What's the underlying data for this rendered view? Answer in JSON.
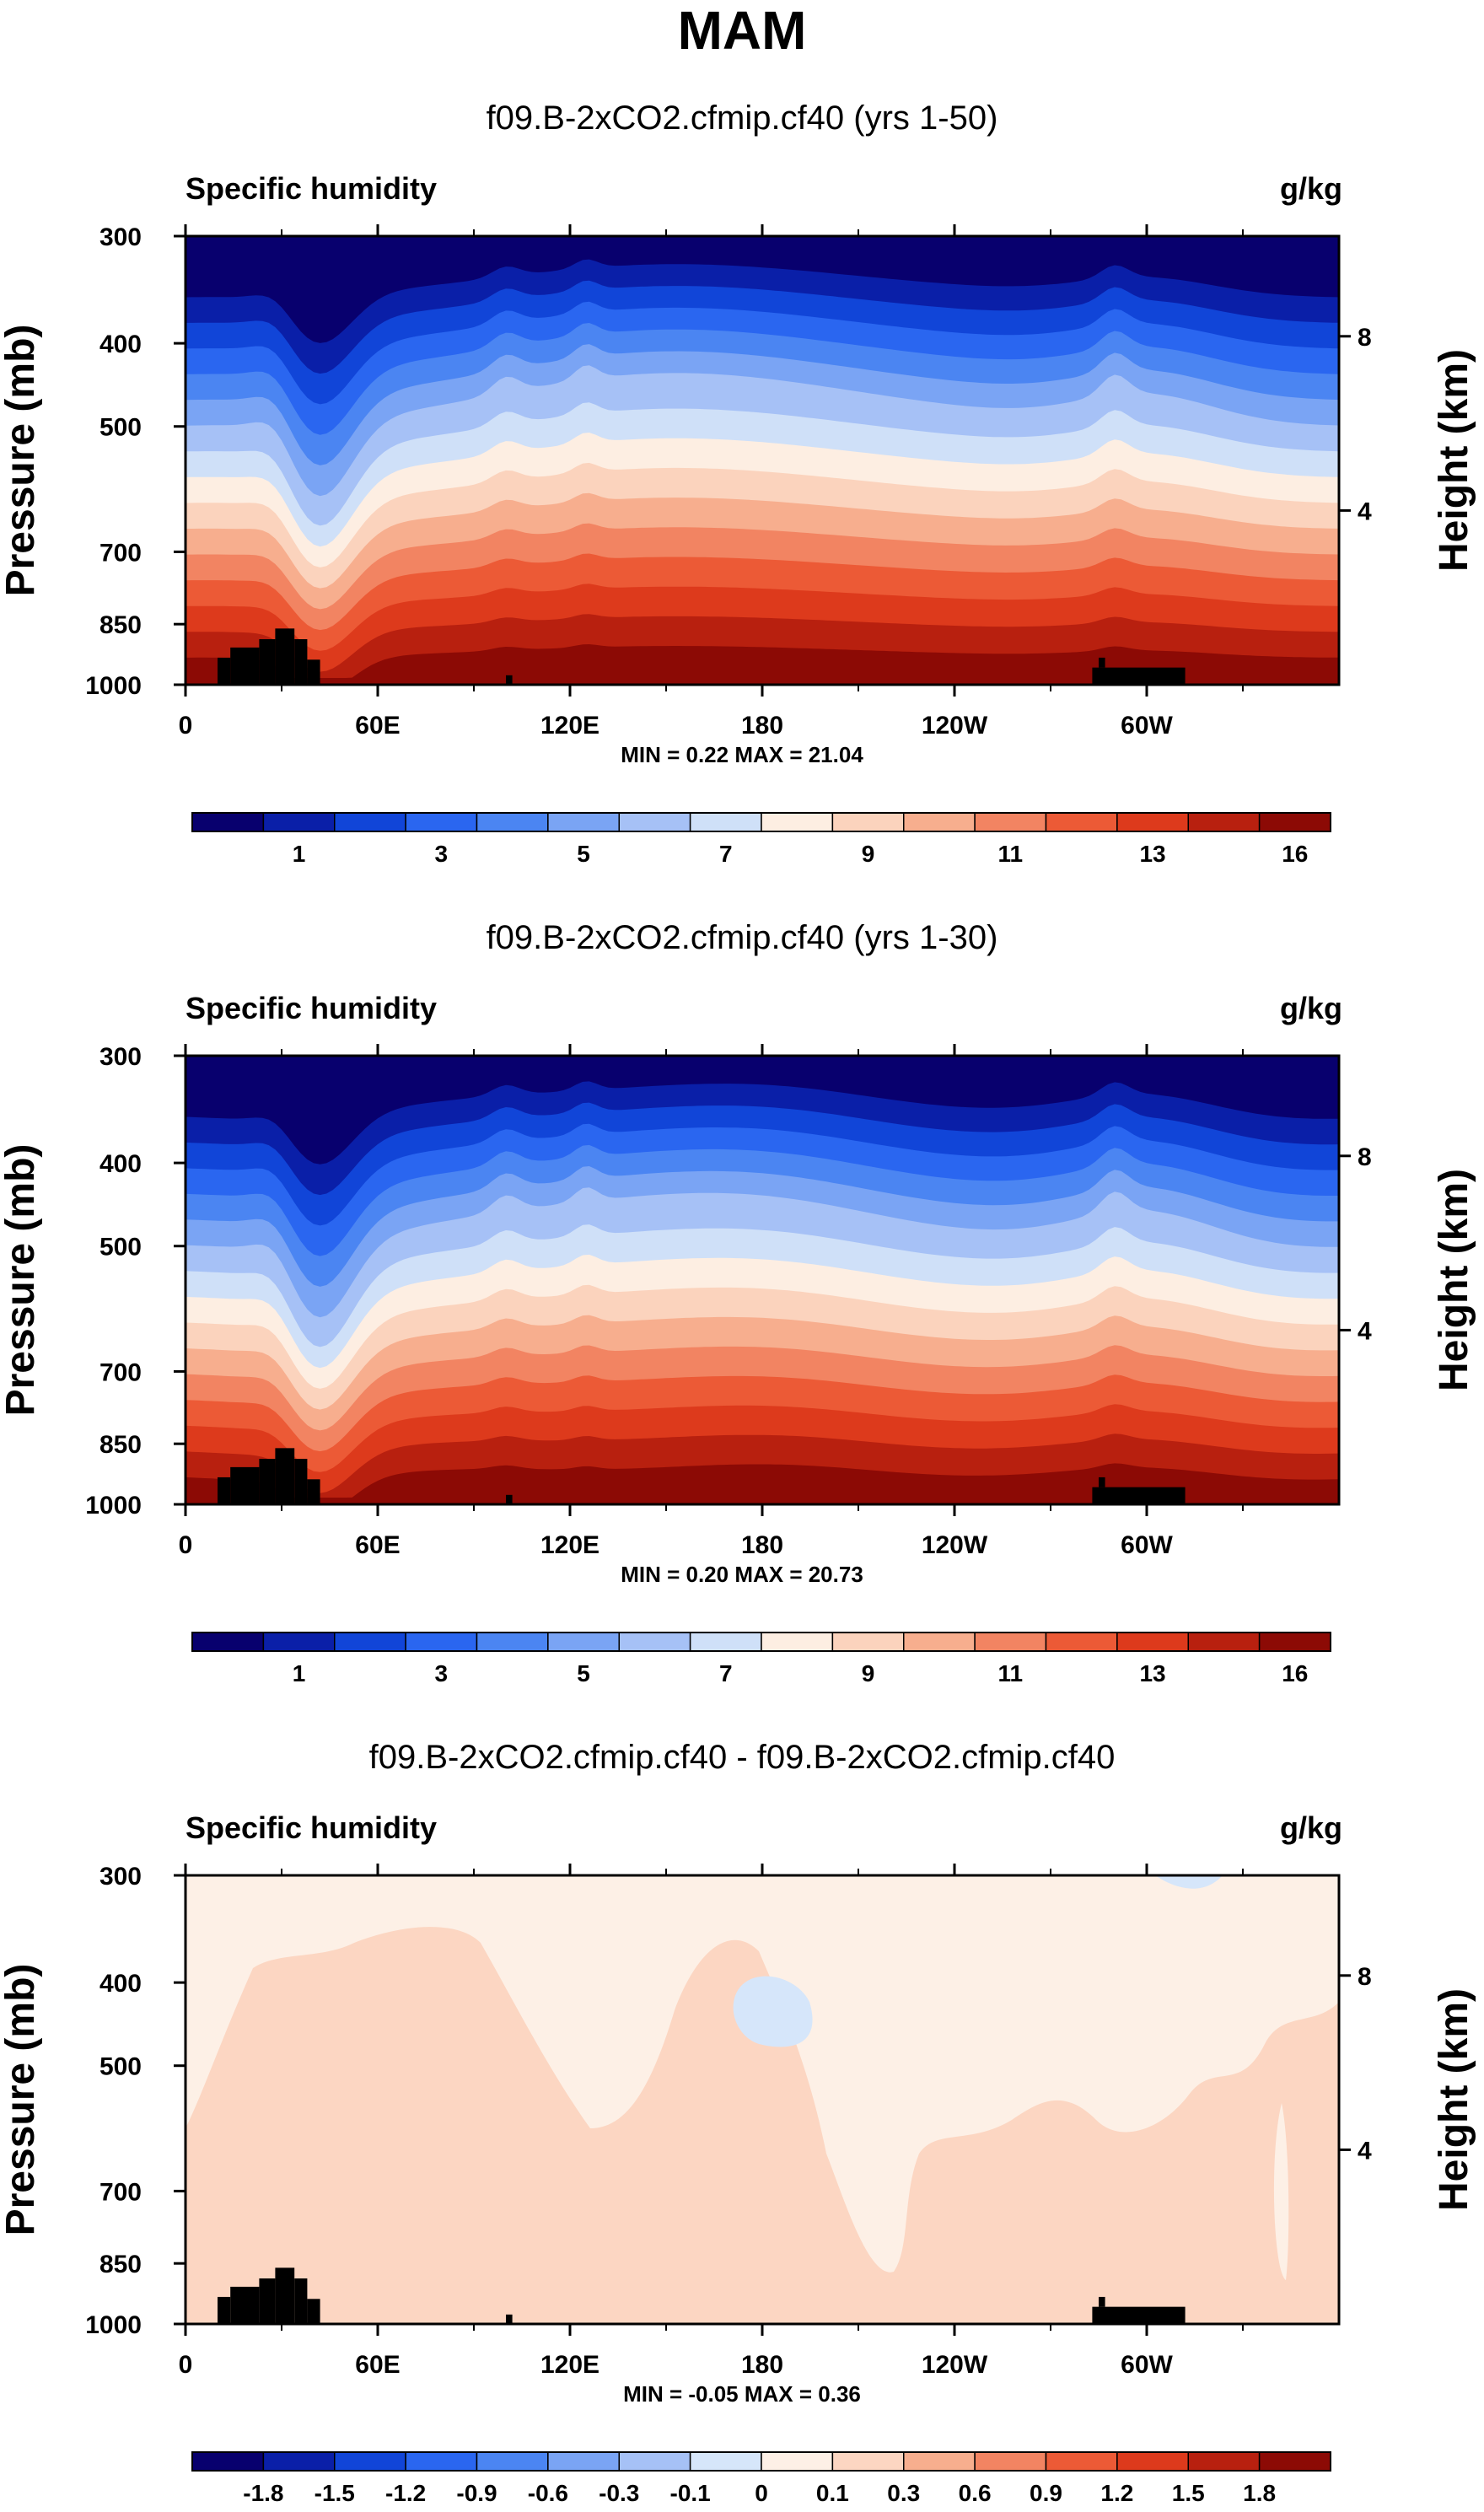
{
  "page": {
    "title": "MAM"
  },
  "colors": {
    "absolute_scale": [
      "#08006e",
      "#0a1fa8",
      "#1145d8",
      "#2a66f0",
      "#4b85f2",
      "#7aa4f4",
      "#a6c1f6",
      "#cfe0f8",
      "#fdeee2",
      "#fbd3bd",
      "#f7ae8e",
      "#f28462",
      "#ec5a36",
      "#dd3a1c",
      "#b8200f",
      "#8c0a05"
    ],
    "diff_scale": [
      "#08006e",
      "#0a1fa8",
      "#1145d8",
      "#2a66f0",
      "#4b85f2",
      "#7aa4f4",
      "#a6c1f6",
      "#d6e6fa",
      "#fdf0e6",
      "#fcd6c2",
      "#f7ae8e",
      "#f28462",
      "#ec5a36",
      "#dd3a1c",
      "#b8200f",
      "#8c0a05"
    ],
    "topography": "#000000"
  },
  "chart_data": [
    {
      "type": "heatmap",
      "title": "f09.B-2xCO2.cfmip.cf40 (yrs 1-50)",
      "left_label": "Specific humidity",
      "right_label": "g/kg",
      "xlabel": "",
      "ylabel": "Pressure (mb)",
      "y2label": "Height (km)",
      "x_ticks": [
        "0",
        "60E",
        "120E",
        "180",
        "120W",
        "60W"
      ],
      "x_tick_values": [
        0,
        60,
        120,
        180,
        240,
        300
      ],
      "xlim": [
        0,
        360
      ],
      "y_ticks": [
        "300",
        "400",
        "500",
        "700",
        "850",
        "1000"
      ],
      "y_tick_values": [
        300,
        400,
        500,
        700,
        850,
        1000
      ],
      "ylim": [
        1000,
        300
      ],
      "y2_ticks": [
        "8",
        "4"
      ],
      "y2_tick_values": [
        8,
        4
      ],
      "min_max": "MIN =   0.22  MAX =  21.04",
      "min": 0.22,
      "max": 21.04,
      "colorbar_labels": [
        "1",
        "3",
        "5",
        "7",
        "9",
        "11",
        "13",
        "16"
      ],
      "levels": [
        0.5,
        1,
        2,
        3,
        4,
        5,
        6,
        7,
        8,
        9,
        10,
        11,
        12,
        13,
        14,
        16
      ]
    },
    {
      "type": "heatmap",
      "title": "f09.B-2xCO2.cfmip.cf40 (yrs 1-30)",
      "left_label": "Specific humidity",
      "right_label": "g/kg",
      "xlabel": "",
      "ylabel": "Pressure (mb)",
      "y2label": "Height (km)",
      "x_ticks": [
        "0",
        "60E",
        "120E",
        "180",
        "120W",
        "60W"
      ],
      "x_tick_values": [
        0,
        60,
        120,
        180,
        240,
        300
      ],
      "xlim": [
        0,
        360
      ],
      "y_ticks": [
        "300",
        "400",
        "500",
        "700",
        "850",
        "1000"
      ],
      "y_tick_values": [
        300,
        400,
        500,
        700,
        850,
        1000
      ],
      "ylim": [
        1000,
        300
      ],
      "y2_ticks": [
        "8",
        "4"
      ],
      "y2_tick_values": [
        8,
        4
      ],
      "min_max": "MIN =   0.20  MAX =  20.73",
      "min": 0.2,
      "max": 20.73,
      "colorbar_labels": [
        "1",
        "3",
        "5",
        "7",
        "9",
        "11",
        "13",
        "16"
      ],
      "levels": [
        0.5,
        1,
        2,
        3,
        4,
        5,
        6,
        7,
        8,
        9,
        10,
        11,
        12,
        13,
        14,
        16
      ]
    },
    {
      "type": "heatmap",
      "title": "f09.B-2xCO2.cfmip.cf40 - f09.B-2xCO2.cfmip.cf40",
      "left_label": "Specific humidity",
      "right_label": "g/kg",
      "xlabel": "",
      "ylabel": "Pressure (mb)",
      "y2label": "Height (km)",
      "x_ticks": [
        "0",
        "60E",
        "120E",
        "180",
        "120W",
        "60W"
      ],
      "x_tick_values": [
        0,
        60,
        120,
        180,
        240,
        300
      ],
      "xlim": [
        0,
        360
      ],
      "y_ticks": [
        "300",
        "400",
        "500",
        "700",
        "850",
        "1000"
      ],
      "y_tick_values": [
        300,
        400,
        500,
        700,
        850,
        1000
      ],
      "ylim": [
        1000,
        300
      ],
      "y2_ticks": [
        "8",
        "4"
      ],
      "y2_tick_values": [
        8,
        4
      ],
      "min_max": "MIN =  -0.05  MAX =   0.36",
      "min": -0.05,
      "max": 0.36,
      "colorbar_labels": [
        "-1.8",
        "-1.5",
        "-1.2",
        "-0.9",
        "-0.6",
        "-0.3",
        "-0.1",
        "0",
        "0.1",
        "0.3",
        "0.6",
        "0.9",
        "1.2",
        "1.5",
        "1.8"
      ],
      "levels": [
        -1.8,
        -1.5,
        -1.2,
        -0.9,
        -0.6,
        -0.3,
        -0.1,
        0,
        0.1,
        0.3,
        0.6,
        0.9,
        1.2,
        1.5,
        1.8
      ]
    }
  ]
}
